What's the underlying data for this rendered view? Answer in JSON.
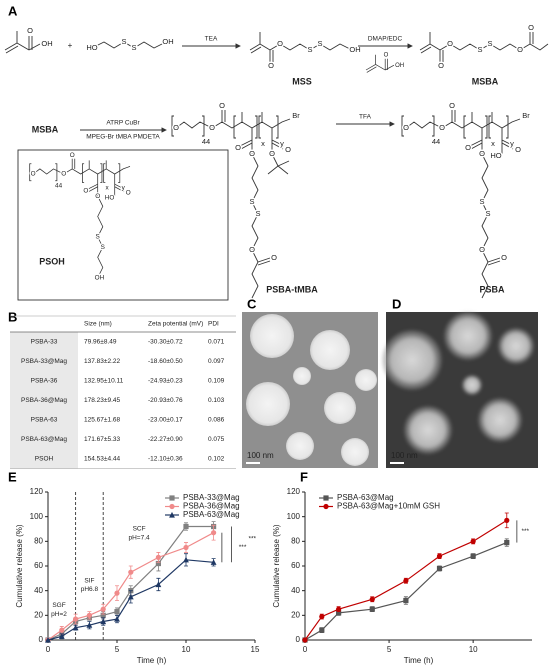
{
  "panels": [
    "A",
    "B",
    "C",
    "D",
    "E",
    "F"
  ],
  "scheme": {
    "plus": "+",
    "arrows": [
      {
        "above": "TEA"
      },
      {
        "above": "DMAP/EDC"
      },
      {
        "above": "ATRP CuBr",
        "below": "MPEG-Br tMBA PMDETA"
      },
      {
        "above": "TFA"
      }
    ],
    "start_label": "MSBA",
    "structures": [
      {
        "atoms": [
          "O",
          "OH"
        ]
      },
      {
        "atoms": [
          "HO",
          "S",
          "S",
          "OH"
        ]
      },
      {
        "atoms": [
          "O",
          "O",
          "S",
          "S",
          "OH"
        ],
        "name": "MSS"
      },
      {
        "atoms": [
          "O",
          "OH"
        ]
      },
      {
        "atoms": [
          "O",
          "O",
          "S",
          "S",
          "O",
          "O"
        ],
        "name": "MSBA"
      },
      {
        "atoms": [
          "O",
          "O",
          "44",
          "x",
          "y",
          "Br",
          "O",
          "O",
          "O",
          "O",
          "O",
          "S",
          "S",
          "O",
          "O"
        ],
        "name": "PSBA-tMBA"
      },
      {
        "atoms": [
          "O",
          "O",
          "44",
          "x",
          "y",
          "Br",
          "O",
          "O",
          "O",
          "O",
          "HO",
          "S",
          "S",
          "O",
          "O"
        ],
        "name": "PSBA"
      },
      {
        "atoms": [
          "O",
          "O",
          "44",
          "x",
          "y",
          "O",
          "O",
          "O",
          "O",
          "HO",
          "S",
          "S",
          "OH"
        ],
        "name": "PSOH"
      }
    ]
  },
  "table": {
    "header": [
      "Size (nm)",
      "Zeta potential (mV)",
      "PDI"
    ],
    "rows": [
      [
        "PSBA-33",
        "79.96±8.49",
        "-30.30±0.72",
        "0.071"
      ],
      [
        "PSBA-33@Mag",
        "137.83±2.22",
        "-18.60±0.50",
        "0.097"
      ],
      [
        "PSBA-36",
        "132.95±10.11",
        "-24.93±0.23",
        "0.109"
      ],
      [
        "PSBA-36@Mag",
        "178.23±9.45",
        "-20.93±0.76",
        "0.103"
      ],
      [
        "PSBA-63",
        "125.67±1.68",
        "-23.00±0.17",
        "0.086"
      ],
      [
        "PSBA-63@Mag",
        "171.67±5.33",
        "-22.27±0.90",
        "0.075"
      ],
      [
        "PSOH",
        "154.53±4.44",
        "-12.10±0.36",
        "0.102"
      ]
    ]
  },
  "images": [
    {
      "scale_bar": "100 nm"
    },
    {
      "scale_bar": "100 nm"
    }
  ],
  "chart_data": [
    {
      "type": "line",
      "x_label": "Time (h)",
      "y_label": "Cumulative release (%)",
      "x": [
        0,
        1,
        2,
        3,
        4,
        5,
        6,
        8,
        10,
        12
      ],
      "xlim": [
        0,
        15
      ],
      "xticks": [
        0,
        5,
        10,
        15
      ],
      "ylim": [
        0,
        120
      ],
      "yticks": [
        0,
        20,
        40,
        60,
        80,
        100,
        120
      ],
      "vlines": [
        2,
        4
      ],
      "legend": "upper right",
      "series": [
        {
          "name": "PSBA-33@Mag",
          "color": "#808080",
          "marker": "square",
          "values": [
            0,
            5,
            15,
            18,
            20,
            23,
            40,
            62,
            92,
            92
          ],
          "errors": [
            0,
            2,
            3,
            2,
            3,
            3,
            4,
            6,
            3,
            4
          ]
        },
        {
          "name": "PSBA-36@Mag",
          "color": "#f08a8a",
          "marker": "circle",
          "values": [
            0,
            8,
            17,
            20,
            25,
            38,
            55,
            67,
            75,
            87
          ],
          "errors": [
            0,
            3,
            4,
            3,
            4,
            6,
            5,
            4,
            4,
            6
          ]
        },
        {
          "name": "PSBA-63@Mag",
          "color": "#1f3864",
          "marker": "triangle",
          "values": [
            0,
            3,
            10,
            12,
            15,
            17,
            35,
            45,
            65,
            63
          ],
          "errors": [
            0,
            2,
            2,
            3,
            3,
            3,
            5,
            5,
            5,
            3
          ]
        }
      ],
      "annotations": [
        "SGF",
        "pH=2",
        "SIF",
        "pH6.8",
        "SCF",
        "pH=7.4",
        "***",
        "***"
      ]
    },
    {
      "type": "line",
      "x_label": "Time (h)",
      "y_label": "Cumulative release (%)",
      "x": [
        0,
        1,
        2,
        4,
        6,
        8,
        10,
        12
      ],
      "xlim": [
        0,
        13.5
      ],
      "xticks": [
        0,
        5,
        10
      ],
      "ylim": [
        0,
        120
      ],
      "yticks": [
        0,
        20,
        40,
        60,
        80,
        100,
        120
      ],
      "legend": "upper left",
      "series": [
        {
          "name": "PSBA-63@Mag",
          "color": "#555555",
          "marker": "square",
          "values": [
            0,
            8,
            22,
            25,
            32,
            58,
            68,
            79
          ],
          "errors": [
            0,
            2,
            2,
            2,
            3,
            2,
            2,
            3
          ]
        },
        {
          "name": "PSBA-63@Mag+10mM GSH",
          "color": "#c00000",
          "marker": "circle",
          "values": [
            0,
            19,
            25,
            33,
            48,
            68,
            80,
            97
          ],
          "errors": [
            0,
            2,
            2,
            2,
            2,
            2,
            2,
            6
          ]
        }
      ],
      "annotations": [
        "***"
      ]
    }
  ]
}
